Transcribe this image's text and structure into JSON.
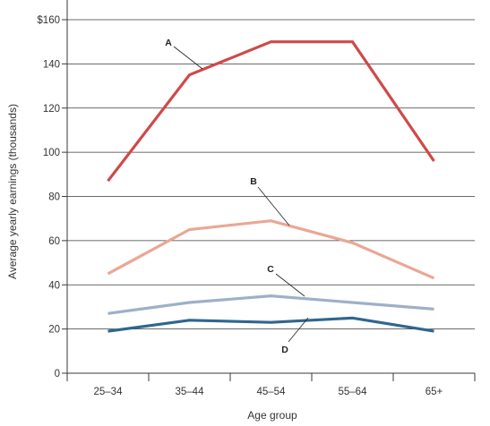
{
  "chart_data": {
    "type": "line",
    "categories": [
      "25–34",
      "35–44",
      "45–54",
      "55–64",
      "65+"
    ],
    "xlabel": "Age group",
    "ylabel": "Average yearly earnings (thousands)",
    "ylim": [
      0,
      160
    ],
    "yticks": [
      0,
      20,
      40,
      60,
      80,
      100,
      120,
      140,
      160
    ],
    "ytick_labels": [
      "0",
      "20",
      "40",
      "60",
      "80",
      "100",
      "120",
      "140",
      "$160"
    ],
    "grid": "horizontal",
    "series": [
      {
        "name": "A",
        "values": [
          87,
          135,
          150,
          150,
          96
        ],
        "color": "#cf4a48"
      },
      {
        "name": "B",
        "values": [
          45,
          65,
          69,
          59,
          43
        ],
        "color": "#eaa795"
      },
      {
        "name": "C",
        "values": [
          27,
          32,
          35,
          32,
          29
        ],
        "color": "#9eb0c8"
      },
      {
        "name": "D",
        "values": [
          19,
          24,
          23,
          25,
          19
        ],
        "color": "#2f6690"
      }
    ]
  }
}
